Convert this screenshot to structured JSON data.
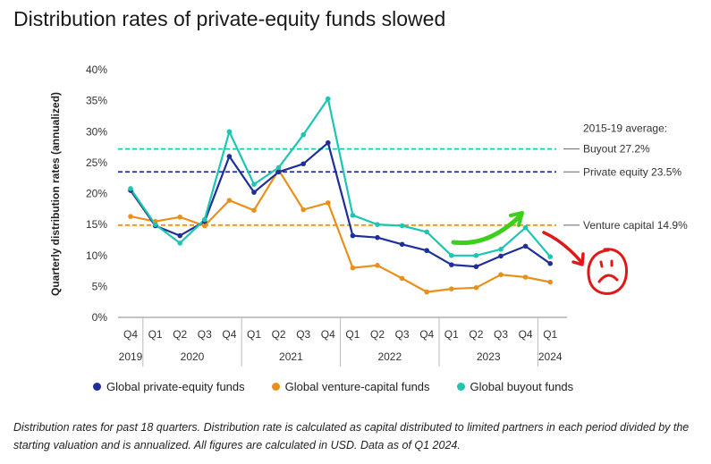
{
  "page": {
    "title": "Distribution rates of private-equity funds slowed",
    "caption": "Distribution rates for past 18 quarters. Distribution rate is calculated as capital distributed to limited partners in each period divided by the starting valuation and is annualized. All figures are calculated in USD. Data as of Q1 2024."
  },
  "colors": {
    "private_equity": "#1f2f99",
    "venture_capital": "#e8901a",
    "buyout": "#1cc6b0",
    "annotation_green": "#3cd01a",
    "annotation_red": "#e01818"
  },
  "chart_data": {
    "type": "line",
    "ylabel": "Quarterly distribution rates (annualized)",
    "ylim": [
      0,
      40
    ],
    "yticks": [
      0,
      5,
      10,
      15,
      20,
      25,
      30,
      35,
      40
    ],
    "ytick_labels": [
      "0%",
      "5%",
      "10%",
      "15%",
      "20%",
      "25%",
      "30%",
      "35%",
      "40%"
    ],
    "grid": false,
    "categories": [
      "Q4",
      "Q1",
      "Q2",
      "Q3",
      "Q4",
      "Q1",
      "Q2",
      "Q3",
      "Q4",
      "Q1",
      "Q2",
      "Q3",
      "Q4",
      "Q1",
      "Q2",
      "Q3",
      "Q4",
      "Q1"
    ],
    "years": [
      {
        "label": "2019",
        "start": 0,
        "end": 0
      },
      {
        "label": "2020",
        "start": 1,
        "end": 4
      },
      {
        "label": "2021",
        "start": 5,
        "end": 8
      },
      {
        "label": "2022",
        "start": 9,
        "end": 12
      },
      {
        "label": "2023",
        "start": 13,
        "end": 16
      },
      {
        "label": "2024",
        "start": 17,
        "end": 17
      }
    ],
    "series": [
      {
        "name": "Global private-equity funds",
        "color_key": "private_equity",
        "values": [
          20.5,
          14.8,
          13.2,
          15.5,
          26.0,
          20.2,
          23.5,
          24.8,
          28.2,
          13.2,
          12.9,
          11.8,
          10.8,
          8.5,
          8.2,
          9.9,
          11.5,
          8.7
        ]
      },
      {
        "name": "Global venture-capital funds",
        "color_key": "venture_capital",
        "values": [
          16.3,
          15.5,
          16.2,
          14.8,
          18.9,
          17.3,
          23.8,
          17.4,
          18.5,
          8.0,
          8.4,
          6.3,
          4.1,
          4.6,
          4.8,
          6.9,
          6.5,
          5.7
        ]
      },
      {
        "name": "Global buyout funds",
        "color_key": "buyout",
        "values": [
          20.8,
          15.0,
          12.0,
          15.8,
          30.0,
          21.5,
          24.2,
          29.5,
          35.3,
          16.5,
          15.0,
          14.8,
          13.8,
          10.0,
          10.0,
          11.0,
          14.5,
          9.8
        ]
      }
    ],
    "reference_lines": [
      {
        "label": "Buyout 27.2%",
        "value": 27.2,
        "color_key": "buyout"
      },
      {
        "label": "Private equity 23.5%",
        "value": 23.5,
        "color_key": "private_equity"
      },
      {
        "label": "Venture capital 14.9%",
        "value": 14.9,
        "color_key": "venture_capital"
      }
    ],
    "reference_heading": "2015-19 average:"
  }
}
